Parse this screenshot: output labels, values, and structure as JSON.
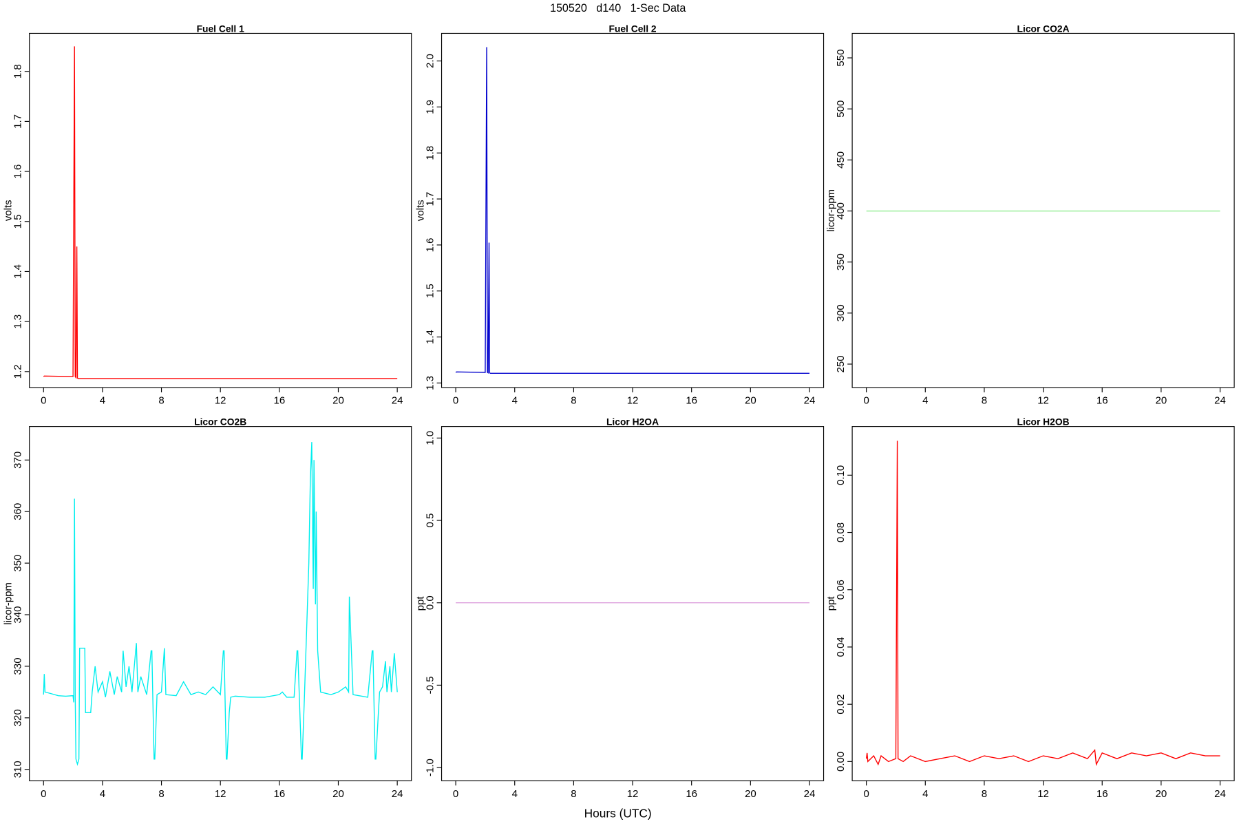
{
  "title": "150520   d140   1-Sec Data",
  "xlabel": "Hours (UTC)",
  "chart_data": [
    {
      "type": "line",
      "title": "Fuel Cell 1",
      "ylabel": "volts",
      "color": "#ff0000",
      "x": [
        0,
        0.05,
        2.0,
        2.1,
        2.15,
        2.2,
        2.26,
        2.3,
        2.35,
        24
      ],
      "values": [
        1.19,
        1.191,
        1.19,
        1.85,
        1.19,
        1.188,
        1.45,
        1.187,
        1.186,
        1.186
      ],
      "xlim": [
        -0.96,
        24.96
      ],
      "xticks": [
        0,
        4,
        8,
        12,
        16,
        20,
        24
      ],
      "ylim": [
        1.168,
        1.876
      ],
      "yticks": [
        1.2,
        1.3,
        1.4,
        1.5,
        1.6,
        1.7,
        1.8
      ]
    },
    {
      "type": "line",
      "title": "Fuel Cell 2",
      "ylabel": "volts",
      "color": "#0000cd",
      "x": [
        0,
        0.05,
        2.0,
        2.1,
        2.15,
        2.2,
        2.26,
        2.3,
        2.35,
        24
      ],
      "values": [
        1.323,
        1.324,
        1.323,
        2.03,
        1.323,
        1.322,
        1.605,
        1.322,
        1.321,
        1.321
      ],
      "xlim": [
        -0.96,
        24.96
      ],
      "xticks": [
        0,
        4,
        8,
        12,
        16,
        20,
        24
      ],
      "ylim": [
        1.29,
        2.06
      ],
      "yticks": [
        1.3,
        1.4,
        1.5,
        1.6,
        1.7,
        1.8,
        1.9,
        {
          "value": 2.0,
          "label": "2.0"
        }
      ]
    },
    {
      "type": "line",
      "title": "Licor CO2A",
      "ylabel": "licor-ppm",
      "color": "#90ee90",
      "x": [
        0,
        24
      ],
      "values": [
        400,
        400
      ],
      "xlim": [
        -0.96,
        24.96
      ],
      "xticks": [
        0,
        4,
        8,
        12,
        16,
        20,
        24
      ],
      "ylim": [
        227,
        574
      ],
      "yticks": [
        250,
        300,
        350,
        400,
        450,
        500,
        550
      ]
    },
    {
      "type": "line",
      "title": "Licor CO2B",
      "ylabel": "licor-ppm",
      "color": "#00eeee",
      "x": [
        0,
        0.05,
        0.1,
        0.5,
        1,
        1.5,
        2,
        2.05,
        2.1,
        2.15,
        2.2,
        2.3,
        2.4,
        2.45,
        2.8,
        2.85,
        3.2,
        3.3,
        3.5,
        3.7,
        4,
        4.2,
        4.5,
        4.8,
        5,
        5.3,
        5.4,
        5.6,
        5.8,
        6,
        6.3,
        6.4,
        6.6,
        7,
        7.3,
        7.35,
        7.5,
        7.55,
        7.7,
        8,
        8.2,
        8.3,
        9,
        9.5,
        10,
        10.5,
        11,
        11.5,
        12,
        12.2,
        12.25,
        12.4,
        12.45,
        12.6,
        12.7,
        13,
        14,
        15,
        16,
        16.2,
        16.5,
        17,
        17.2,
        17.25,
        17.5,
        17.55,
        17.7,
        18,
        18.1,
        18.2,
        18.3,
        18.35,
        18.45,
        18.5,
        18.6,
        18.8,
        19.5,
        20,
        20.5,
        20.7,
        20.75,
        21,
        22,
        22.3,
        22.35,
        22.5,
        22.55,
        22.7,
        22.8,
        23,
        23.2,
        23.3,
        23.5,
        23.6,
        23.8,
        24
      ],
      "values": [
        324.5,
        328.5,
        325,
        324.7,
        324.3,
        324.2,
        324.3,
        323,
        362.5,
        324,
        312,
        311,
        312,
        333.5,
        333.5,
        321,
        321,
        325,
        330,
        325,
        327,
        324,
        329,
        324.5,
        328,
        325,
        333,
        326,
        330,
        325,
        334.5,
        325,
        328,
        324.5,
        333,
        333,
        312,
        312,
        324.5,
        325,
        333.5,
        324.5,
        324.3,
        327,
        324.5,
        325,
        324.5,
        326,
        324.5,
        333,
        333,
        312,
        312,
        321,
        324,
        324.2,
        324,
        324,
        324.5,
        325,
        324,
        324,
        333,
        333,
        312,
        312,
        324,
        350,
        366,
        373.5,
        345,
        370,
        342,
        360,
        333,
        325,
        324.5,
        325,
        326,
        325,
        343.5,
        324.5,
        324,
        333,
        333,
        312,
        312,
        320,
        325,
        326,
        331,
        325,
        330,
        325,
        332.5,
        325
      ],
      "xlim": [
        -0.96,
        24.96
      ],
      "xticks": [
        0,
        4,
        8,
        12,
        16,
        20,
        24
      ],
      "ylim": [
        307.8,
        376.5
      ],
      "yticks": [
        310,
        320,
        330,
        340,
        350,
        360,
        370
      ]
    },
    {
      "type": "line",
      "title": "Licor H2OA",
      "ylabel": "ppt",
      "color": "#dda0dd",
      "x": [
        0,
        24
      ],
      "values": [
        0,
        0
      ],
      "xlim": [
        -0.96,
        24.96
      ],
      "xticks": [
        0,
        4,
        8,
        12,
        16,
        20,
        24
      ],
      "ylim": [
        -1.08,
        1.07
      ],
      "yticks": [
        {
          "value": -1,
          "label": "-1.0"
        },
        -0.5,
        {
          "value": 0,
          "label": "0.0"
        },
        0.5,
        {
          "value": 1,
          "label": "1.0"
        }
      ]
    },
    {
      "type": "line",
      "title": "Licor H2OB",
      "ylabel": "ppt",
      "color": "#ff0000",
      "x": [
        0,
        0.05,
        0.1,
        0.5,
        0.8,
        1,
        1.5,
        2,
        2.1,
        2.15,
        2.5,
        3,
        4,
        5,
        6,
        7,
        8,
        9,
        10,
        11,
        12,
        13,
        14,
        15,
        15.5,
        15.6,
        16,
        17,
        18,
        19,
        20,
        21,
        22,
        23,
        24
      ],
      "values": [
        0.001,
        0.003,
        0,
        0.002,
        -0.001,
        0.002,
        0,
        0.001,
        0.112,
        0.001,
        0,
        0.002,
        0,
        0.001,
        0.002,
        0,
        0.002,
        0.001,
        0.002,
        0,
        0.002,
        0.001,
        0.003,
        0.001,
        0.004,
        -0.001,
        0.003,
        0.001,
        0.003,
        0.002,
        0.003,
        0.001,
        0.003,
        0.002,
        0.002
      ],
      "xlim": [
        -0.96,
        24.96
      ],
      "xticks": [
        0,
        4,
        8,
        12,
        16,
        20,
        24
      ],
      "ylim": [
        -0.0067,
        0.117
      ],
      "yticks": [
        {
          "value": 0,
          "label": "0.00"
        },
        0.02,
        0.04,
        0.06,
        0.08,
        {
          "value": 0.1,
          "label": "0.10"
        }
      ]
    }
  ]
}
